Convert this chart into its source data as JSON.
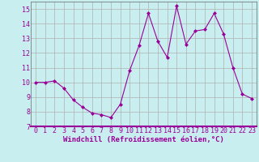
{
  "x": [
    0,
    1,
    2,
    3,
    4,
    5,
    6,
    7,
    8,
    9,
    10,
    11,
    12,
    13,
    14,
    15,
    16,
    17,
    18,
    19,
    20,
    21,
    22,
    23
  ],
  "y": [
    10.0,
    10.0,
    10.1,
    9.6,
    8.8,
    8.3,
    7.9,
    7.8,
    7.6,
    8.5,
    10.8,
    12.5,
    14.7,
    12.8,
    11.7,
    15.2,
    12.6,
    13.5,
    13.6,
    14.7,
    13.3,
    11.0,
    9.2,
    8.9
  ],
  "line_color": "#990099",
  "marker": "D",
  "marker_size": 2.0,
  "bg_color": "#c8eef0",
  "grid_color": "#b0b0b0",
  "xlabel": "Windchill (Refroidissement éolien,°C)",
  "xlabel_color": "#990099",
  "xlabel_fontsize": 6.5,
  "tick_color": "#990099",
  "tick_fontsize": 6.0,
  "ylim": [
    7,
    15.5
  ],
  "xlim": [
    -0.5,
    23.5
  ],
  "yticks": [
    7,
    8,
    9,
    10,
    11,
    12,
    13,
    14,
    15
  ],
  "xticks": [
    0,
    1,
    2,
    3,
    4,
    5,
    6,
    7,
    8,
    9,
    10,
    11,
    12,
    13,
    14,
    15,
    16,
    17,
    18,
    19,
    20,
    21,
    22,
    23
  ],
  "spine_color": "#666666",
  "bottom_spine_color": "#990099"
}
